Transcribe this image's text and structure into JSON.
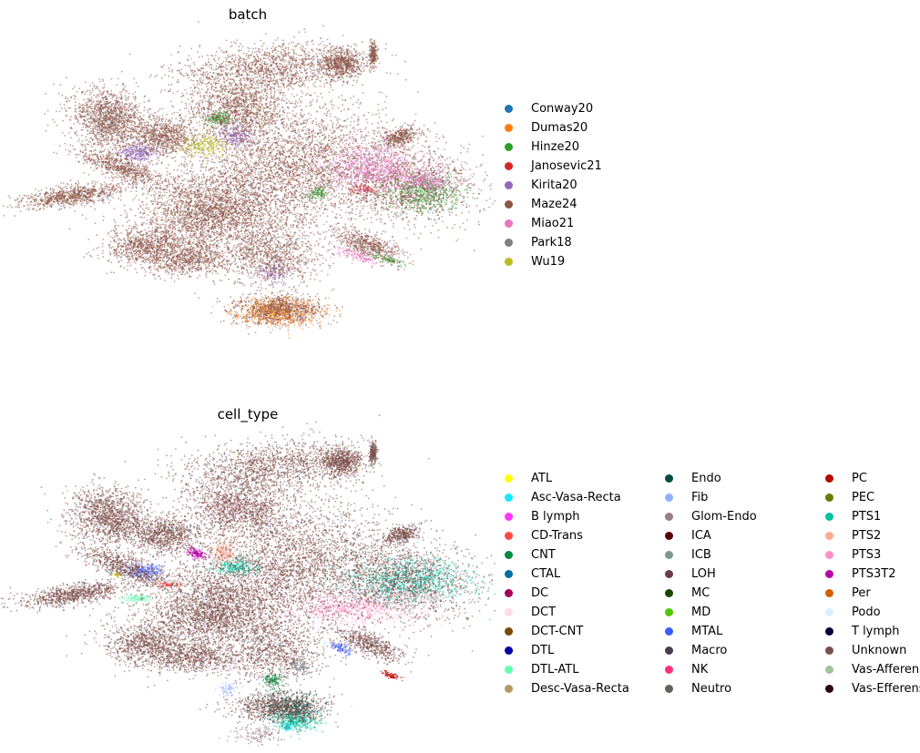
{
  "chart_data": [
    {
      "type": "scatter",
      "title": "batch",
      "xlabel": "",
      "ylabel": "",
      "grid": false,
      "legend_placement": "right",
      "legend_columns": 1,
      "series": [
        {
          "name": "Conway20",
          "color": "#1f77b4",
          "weight": 0.005
        },
        {
          "name": "Dumas20",
          "color": "#ff7f0e",
          "weight": 0.04
        },
        {
          "name": "Hinze20",
          "color": "#2ca02c",
          "weight": 0.04
        },
        {
          "name": "Janosevic21",
          "color": "#d62728",
          "weight": 0.02
        },
        {
          "name": "Kirita20",
          "color": "#9467bd",
          "weight": 0.06
        },
        {
          "name": "Maze24",
          "color": "#8c564b",
          "weight": 0.64
        },
        {
          "name": "Miao21",
          "color": "#e377c2",
          "weight": 0.1
        },
        {
          "name": "Park18",
          "color": "#7f7f7f",
          "weight": 0.03
        },
        {
          "name": "Wu19",
          "color": "#bcbd22",
          "weight": 0.065
        }
      ]
    },
    {
      "type": "scatter",
      "title": "cell_type",
      "xlabel": "",
      "ylabel": "",
      "grid": false,
      "legend_placement": "right",
      "legend_columns": 3,
      "series": [
        {
          "name": "ATL",
          "color": "#ffff00",
          "weight": 0.005
        },
        {
          "name": "Asc-Vasa-Recta",
          "color": "#1ce6ff",
          "weight": 0.005
        },
        {
          "name": "B lymph",
          "color": "#ff34ff",
          "weight": 0.01
        },
        {
          "name": "CD-Trans",
          "color": "#ff4a46",
          "weight": 0.01
        },
        {
          "name": "CNT",
          "color": "#008941",
          "weight": 0.01
        },
        {
          "name": "CTAL",
          "color": "#006fa6",
          "weight": 0.01
        },
        {
          "name": "DC",
          "color": "#a30059",
          "weight": 0.005
        },
        {
          "name": "DCT",
          "color": "#ffdbe5",
          "weight": 0.06
        },
        {
          "name": "DCT-CNT",
          "color": "#7a4900",
          "weight": 0.005
        },
        {
          "name": "DTL",
          "color": "#0000a6",
          "weight": 0.005
        },
        {
          "name": "DTL-ATL",
          "color": "#63ffac",
          "weight": 0.01
        },
        {
          "name": "Desc-Vasa-Recta",
          "color": "#b79762",
          "weight": 0.005
        },
        {
          "name": "Endo",
          "color": "#004d43",
          "weight": 0.03
        },
        {
          "name": "Fib",
          "color": "#8fb0ff",
          "weight": 0.02
        },
        {
          "name": "Glom-Endo",
          "color": "#997d87",
          "weight": 0.02
        },
        {
          "name": "ICA",
          "color": "#5a0007",
          "weight": 0.005
        },
        {
          "name": "ICB",
          "color": "#809693",
          "weight": 0.02
        },
        {
          "name": "LOH",
          "color": "#6a3a4c",
          "weight": 0.005
        },
        {
          "name": "MC",
          "color": "#1b4400",
          "weight": 0.005
        },
        {
          "name": "MD",
          "color": "#4fc601",
          "weight": 0.005
        },
        {
          "name": "MTAL",
          "color": "#3b5dff",
          "weight": 0.01
        },
        {
          "name": "Macro",
          "color": "#4a3b53",
          "weight": 0.005
        },
        {
          "name": "NK",
          "color": "#ff2f80",
          "weight": 0.005
        },
        {
          "name": "Neutro",
          "color": "#61615a",
          "weight": 0.005
        },
        {
          "name": "PC",
          "color": "#ba0900",
          "weight": 0.01
        },
        {
          "name": "PEC",
          "color": "#6b7900",
          "weight": 0.005
        },
        {
          "name": "PTS1",
          "color": "#00c2a0",
          "weight": 0.05
        },
        {
          "name": "PTS2",
          "color": "#ffaa92",
          "weight": 0.02
        },
        {
          "name": "PTS3",
          "color": "#ff90c9",
          "weight": 0.04
        },
        {
          "name": "PTS3T2",
          "color": "#b903aa",
          "weight": 0.01
        },
        {
          "name": "Per",
          "color": "#d16100",
          "weight": 0.005
        },
        {
          "name": "Podo",
          "color": "#ddefff",
          "weight": 0.005
        },
        {
          "name": "T lymph",
          "color": "#000035",
          "weight": 0.005
        },
        {
          "name": "Unknown",
          "color": "#7b4f4b",
          "weight": 0.6
        },
        {
          "name": "Vas-Afferens",
          "color": "#a1c299",
          "weight": 0.005
        },
        {
          "name": "Vas-Efferens",
          "color": "#300018",
          "weight": 0.005
        }
      ]
    }
  ]
}
